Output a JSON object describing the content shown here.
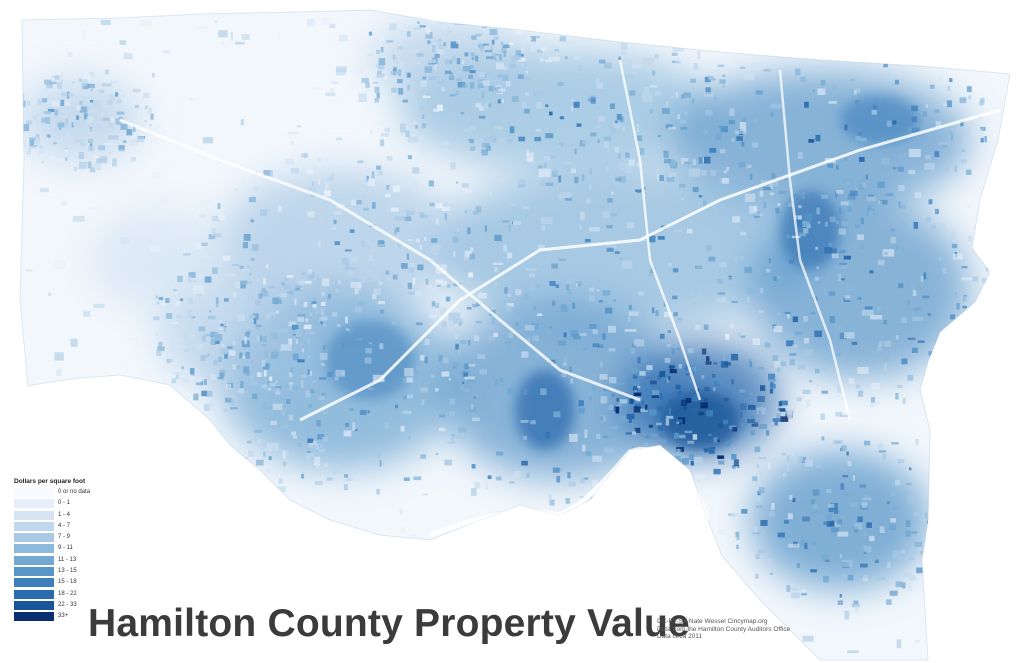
{
  "title": "Hamilton County Property Value",
  "legend": {
    "title": "Dollars per square foot",
    "items": [
      {
        "label": "0 or no data",
        "color": "#f7fbff"
      },
      {
        "label": "0 - 1",
        "color": "#e6eff9"
      },
      {
        "label": "1 - 4",
        "color": "#d4e4f3"
      },
      {
        "label": "4 - 7",
        "color": "#c0d7ed"
      },
      {
        "label": "7 - 9",
        "color": "#a8c8e4"
      },
      {
        "label": "9 - 11",
        "color": "#8dbadb"
      },
      {
        "label": "11 - 13",
        "color": "#72a8d2"
      },
      {
        "label": "13 - 15",
        "color": "#5896c8"
      },
      {
        "label": "15 - 18",
        "color": "#3e80bc"
      },
      {
        "label": "18 - 22",
        "color": "#2a6aad"
      },
      {
        "label": "22 - 33",
        "color": "#195699"
      },
      {
        "label": "33+",
        "color": "#083070"
      }
    ]
  },
  "credits": [
    "CC-BY-SA Nate Wessel Cincymap.org",
    "Data from the Hamilton County Auditors Office",
    "Data circa 2011"
  ]
}
